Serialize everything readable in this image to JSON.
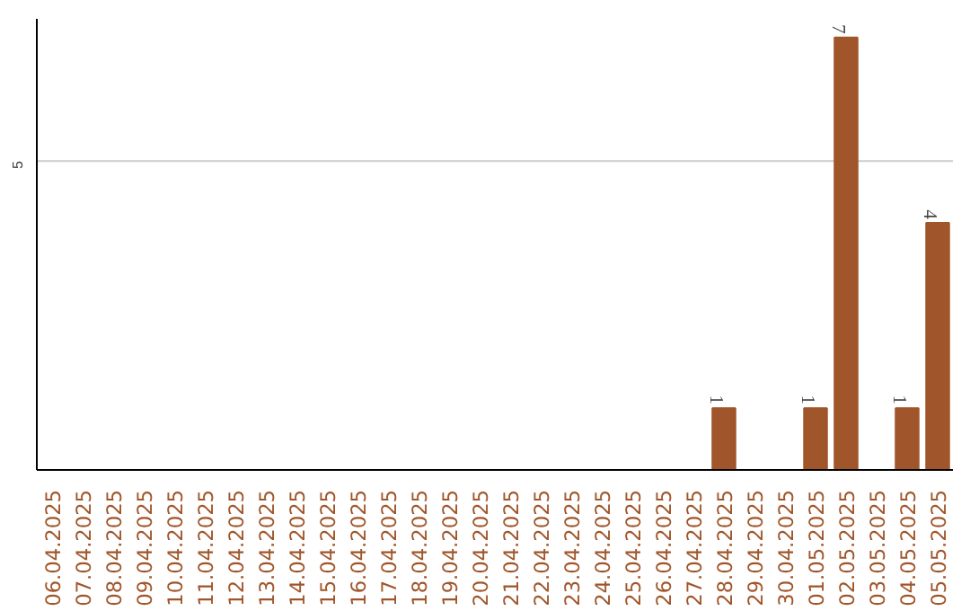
{
  "chart_data": {
    "type": "bar",
    "categories": [
      "06.04.2025",
      "07.04.2025",
      "08.04.2025",
      "09.04.2025",
      "10.04.2025",
      "11.04.2025",
      "12.04.2025",
      "13.04.2025",
      "14.04.2025",
      "15.04.2025",
      "16.04.2025",
      "17.04.2025",
      "18.04.2025",
      "19.04.2025",
      "20.04.2025",
      "21.04.2025",
      "22.04.2025",
      "23.04.2025",
      "24.04.2025",
      "25.04.2025",
      "26.04.2025",
      "27.04.2025",
      "28.04.2025",
      "29.04.2025",
      "30.04.2025",
      "01.05.2025",
      "02.05.2025",
      "03.05.2025",
      "04.05.2025",
      "05.05.2025"
    ],
    "values": [
      null,
      null,
      null,
      null,
      null,
      null,
      null,
      null,
      null,
      null,
      null,
      null,
      null,
      null,
      null,
      null,
      null,
      null,
      null,
      null,
      null,
      null,
      1,
      null,
      null,
      1,
      7,
      null,
      1,
      4
    ],
    "value_labels": [
      null,
      null,
      null,
      null,
      null,
      null,
      null,
      null,
      null,
      null,
      null,
      null,
      null,
      null,
      null,
      null,
      null,
      null,
      null,
      null,
      null,
      null,
      "1",
      null,
      null,
      "1",
      "7",
      null,
      "1",
      "4"
    ],
    "color": "#a0562a",
    "ref_lines": [
      {
        "axis": "y",
        "value": 5,
        "label": "5",
        "color": "#cccccc"
      }
    ]
  }
}
